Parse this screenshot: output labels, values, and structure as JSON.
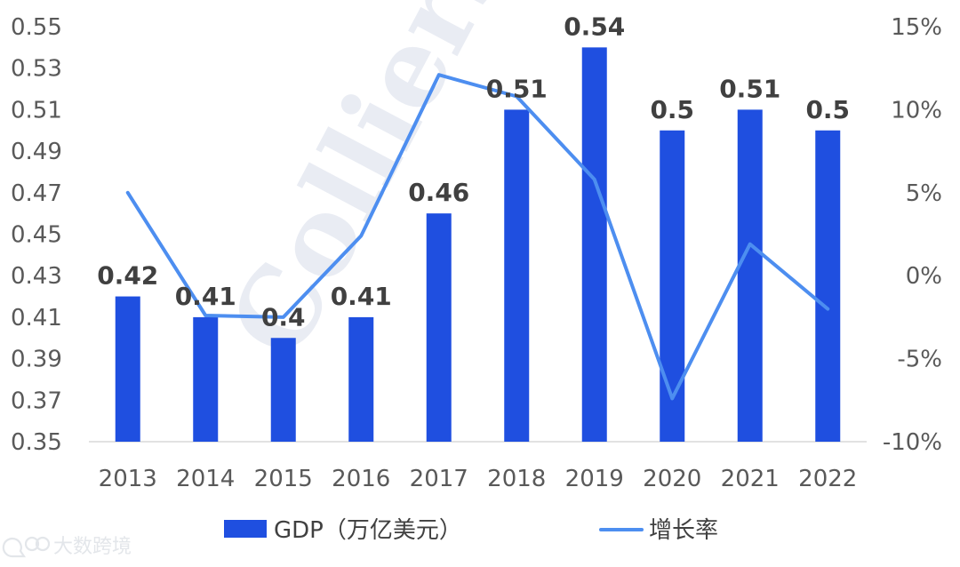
{
  "watermark": "Colliers",
  "brand": {
    "icon": "chat-bubbles-icon",
    "text": "大数跨境"
  },
  "chart_data": {
    "type": "bar",
    "categories": [
      "2013",
      "2014",
      "2015",
      "2016",
      "2017",
      "2018",
      "2019",
      "2020",
      "2021",
      "2022"
    ],
    "series": [
      {
        "name": "GDP（万亿美元）",
        "type": "bar",
        "axis": "left",
        "values": [
          0.42,
          0.41,
          0.4,
          0.41,
          0.46,
          0.51,
          0.54,
          0.5,
          0.51,
          0.5
        ],
        "labels": [
          "0.42",
          "0.41",
          "0.4",
          "0.41",
          "0.46",
          "0.51",
          "0.54",
          "0.5",
          "0.51",
          "0.5"
        ],
        "color": "#1f4fe0"
      },
      {
        "name": "增长率",
        "type": "line",
        "axis": "right",
        "values": [
          5.0,
          -2.4,
          -2.5,
          2.4,
          12.1,
          10.8,
          5.8,
          -7.4,
          1.9,
          -2.0
        ],
        "color": "#4d8ef0"
      }
    ],
    "ylim": [
      0.35,
      0.55
    ],
    "yticks": [
      "0.35",
      "0.37",
      "0.39",
      "0.41",
      "0.43",
      "0.45",
      "0.47",
      "0.49",
      "0.51",
      "0.53",
      "0.55"
    ],
    "y2lim": [
      -10,
      15
    ],
    "y2ticks": [
      "-10%",
      "-5%",
      "0%",
      "5%",
      "10%",
      "15%"
    ],
    "grid": false,
    "legend": "bottom"
  }
}
